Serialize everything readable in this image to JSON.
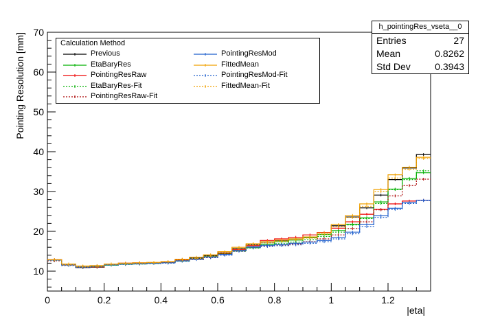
{
  "chart_data": {
    "type": "line",
    "histogram_name": "h_pointingRes_vseta__0",
    "ylabel": "Pointing Resolution [mm]",
    "xlabel": "|eta|",
    "xlim": [
      0,
      1.35
    ],
    "ylim": [
      5,
      70
    ],
    "x_ticks": [
      "0",
      "0.2",
      "0.4",
      "0.6",
      "0.8",
      "1",
      "1.2"
    ],
    "y_ticks": [
      "10",
      "20",
      "30",
      "40",
      "50",
      "60",
      "70"
    ],
    "bin_edges": [
      0,
      0.05,
      0.1,
      0.15,
      0.2,
      0.25,
      0.3,
      0.35,
      0.4,
      0.45,
      0.5,
      0.55,
      0.6,
      0.65,
      0.7,
      0.75,
      0.8,
      0.85,
      0.9,
      0.95,
      1.0,
      1.05,
      1.1,
      1.15,
      1.2,
      1.25,
      1.3,
      1.35
    ],
    "legend_title": "Calculation Method",
    "series": [
      {
        "name": "Previous",
        "color": "#000000",
        "style": "solid",
        "values": [
          12.8,
          11.7,
          10.9,
          11.0,
          11.6,
          11.9,
          12.0,
          12.1,
          12.2,
          12.9,
          13.3,
          13.9,
          14.6,
          15.7,
          16.6,
          17.3,
          17.7,
          18.1,
          18.5,
          19.6,
          21.4,
          23.6,
          25.9,
          29.1,
          33.0,
          35.9,
          39.3
        ]
      },
      {
        "name": "EtaBaryRes",
        "color": "#00b000",
        "style": "solid",
        "values": [
          12.8,
          11.6,
          11.2,
          11.2,
          11.5,
          11.8,
          11.9,
          12.0,
          12.2,
          12.6,
          13.1,
          13.7,
          14.4,
          15.1,
          15.9,
          16.8,
          17.4,
          17.8,
          18.4,
          19.2,
          20.2,
          21.8,
          23.4,
          27.4,
          30.6,
          33.3,
          34.7
        ]
      },
      {
        "name": "PointingResRaw",
        "color": "#ee0000",
        "style": "solid",
        "values": [
          12.9,
          11.7,
          11.2,
          11.3,
          11.8,
          12.0,
          12.1,
          12.1,
          12.3,
          12.8,
          13.0,
          13.6,
          14.5,
          15.4,
          16.4,
          17.7,
          18.1,
          18.5,
          19.1,
          19.7,
          20.8,
          22.4,
          24.3,
          25.5,
          26.9,
          27.6,
          27.8
        ]
      },
      {
        "name": "EtaBaryRes-Fit",
        "color": "#00b000",
        "style": "dotted",
        "values": [
          12.7,
          11.5,
          11.0,
          11.1,
          11.5,
          11.7,
          11.8,
          11.9,
          12.1,
          12.5,
          13.0,
          13.5,
          14.2,
          15.0,
          15.8,
          16.5,
          16.9,
          17.3,
          17.9,
          18.7,
          19.8,
          21.6,
          23.2,
          27.0,
          30.5,
          33.0,
          35.2
        ]
      },
      {
        "name": "PointingResRaw-Fit",
        "color": "#aa0000",
        "style": "dotted",
        "values": [
          12.6,
          11.5,
          10.9,
          11.0,
          11.6,
          11.8,
          11.9,
          12.0,
          12.2,
          12.6,
          13.0,
          13.4,
          14.1,
          15.0,
          16.0,
          16.3,
          16.5,
          16.8,
          17.4,
          18.1,
          19.1,
          20.7,
          22.4,
          25.4,
          28.9,
          31.5,
          33.1
        ]
      },
      {
        "name": "PointingResMod",
        "color": "#1e5fcc",
        "style": "solid",
        "values": [
          12.8,
          11.6,
          11.1,
          11.3,
          11.6,
          11.8,
          11.9,
          12.0,
          12.1,
          12.6,
          13.1,
          13.6,
          14.2,
          15.2,
          16.1,
          16.5,
          16.7,
          17.0,
          17.3,
          17.7,
          18.5,
          19.8,
          21.7,
          23.9,
          25.8,
          27.3,
          27.8
        ]
      },
      {
        "name": "FittedMean",
        "color": "#f0a000",
        "style": "solid",
        "values": [
          12.9,
          11.8,
          11.3,
          11.4,
          11.8,
          12.0,
          12.1,
          12.2,
          12.4,
          13.0,
          13.5,
          14.1,
          14.9,
          16.0,
          16.9,
          17.4,
          17.8,
          18.1,
          18.6,
          19.6,
          21.7,
          24.0,
          26.9,
          30.5,
          34.2,
          36.1,
          38.6
        ]
      },
      {
        "name": "PointingResMod-Fit",
        "color": "#1e5fcc",
        "style": "dotted",
        "values": [
          12.7,
          11.4,
          10.9,
          11.2,
          11.5,
          11.7,
          11.8,
          11.9,
          12.0,
          12.5,
          12.9,
          13.4,
          14.0,
          15.0,
          15.9,
          16.2,
          16.4,
          16.6,
          17.0,
          17.4,
          18.1,
          19.4,
          21.2,
          23.5,
          25.5,
          27.0,
          27.7
        ]
      },
      {
        "name": "FittedMean-Fit",
        "color": "#f0a000",
        "style": "dotted",
        "values": [
          12.8,
          11.6,
          11.1,
          11.2,
          11.7,
          11.9,
          12.0,
          12.1,
          12.3,
          12.8,
          13.2,
          13.8,
          14.6,
          15.6,
          16.6,
          17.1,
          17.5,
          17.9,
          18.3,
          19.3,
          21.2,
          23.5,
          26.3,
          30.0,
          33.4,
          35.6,
          38.3
        ]
      }
    ]
  },
  "legend": {
    "title": "Calculation Method",
    "entries": [
      "Previous",
      "EtaBaryRes",
      "PointingResRaw",
      "EtaBaryRes-Fit",
      "PointingResRaw-Fit",
      "PointingResMod",
      "FittedMean",
      "PointingResMod-Fit",
      "FittedMean-Fit"
    ]
  },
  "stats": {
    "title": "h_pointingRes_vseta__0",
    "rows": [
      {
        "key": "Entries",
        "value": "27"
      },
      {
        "key": "Mean",
        "value": "0.8262"
      },
      {
        "key": "Std Dev",
        "value": "0.3943"
      }
    ]
  }
}
